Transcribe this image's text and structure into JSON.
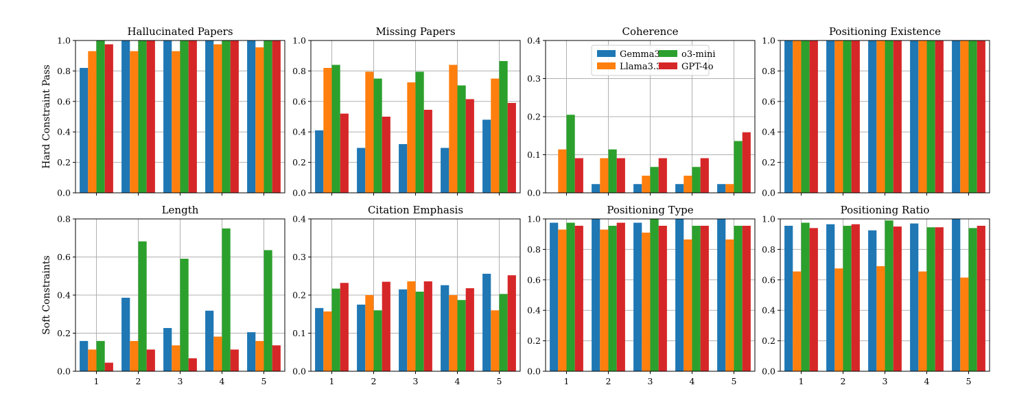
{
  "chart_data": [
    {
      "type": "bar",
      "title": "Hallucinated Papers",
      "ylabel": "Hard Constraint Pass",
      "categories": [
        "1",
        "2",
        "3",
        "4",
        "5"
      ],
      "ylim": [
        0,
        1.0
      ],
      "yticks": [
        "0.0",
        "0.2",
        "0.4",
        "0.6",
        "0.8",
        "1.0"
      ],
      "grid": true,
      "series": [
        {
          "name": "Gemma3",
          "values": [
            0.82,
            1.0,
            1.0,
            1.0,
            1.0
          ]
        },
        {
          "name": "Llama3.3",
          "values": [
            0.93,
            0.93,
            0.93,
            0.975,
            0.955
          ]
        },
        {
          "name": "o3-mini",
          "values": [
            1.0,
            1.0,
            1.0,
            1.0,
            1.0
          ]
        },
        {
          "name": "GPT-4o",
          "values": [
            0.975,
            1.0,
            1.0,
            1.0,
            1.0
          ]
        }
      ]
    },
    {
      "type": "bar",
      "title": "Missing Papers",
      "ylabel": "",
      "categories": [
        "1",
        "2",
        "3",
        "4",
        "5"
      ],
      "ylim": [
        0,
        1.0
      ],
      "yticks": [
        "0.0",
        "0.2",
        "0.4",
        "0.6",
        "0.8",
        "1.0"
      ],
      "grid": true,
      "series": [
        {
          "name": "Gemma3",
          "values": [
            0.41,
            0.295,
            0.32,
            0.295,
            0.48
          ]
        },
        {
          "name": "Llama3.3",
          "values": [
            0.82,
            0.795,
            0.725,
            0.84,
            0.75
          ]
        },
        {
          "name": "o3-mini",
          "values": [
            0.84,
            0.75,
            0.795,
            0.705,
            0.865
          ]
        },
        {
          "name": "GPT-4o",
          "values": [
            0.52,
            0.5,
            0.545,
            0.615,
            0.59
          ]
        }
      ]
    },
    {
      "type": "bar",
      "title": "Coherence",
      "ylabel": "",
      "categories": [
        "1",
        "2",
        "3",
        "4",
        "5"
      ],
      "ylim": [
        0,
        0.4
      ],
      "yticks": [
        "0.0",
        "0.1",
        "0.2",
        "0.3",
        "0.4"
      ],
      "grid": true,
      "legend": "top-center",
      "series": [
        {
          "name": "Gemma3",
          "values": [
            0.0,
            0.023,
            0.023,
            0.023,
            0.023
          ]
        },
        {
          "name": "Llama3.3",
          "values": [
            0.114,
            0.091,
            0.045,
            0.045,
            0.023
          ]
        },
        {
          "name": "o3-mini",
          "values": [
            0.205,
            0.114,
            0.068,
            0.068,
            0.136
          ]
        },
        {
          "name": "GPT-4o",
          "values": [
            0.091,
            0.091,
            0.091,
            0.091,
            0.159
          ]
        }
      ]
    },
    {
      "type": "bar",
      "title": "Positioning Existence",
      "ylabel": "",
      "categories": [
        "1",
        "2",
        "3",
        "4",
        "5"
      ],
      "ylim": [
        0,
        1.0
      ],
      "yticks": [
        "0.0",
        "0.2",
        "0.4",
        "0.6",
        "0.8",
        "1.0"
      ],
      "grid": true,
      "series": [
        {
          "name": "Gemma3",
          "values": [
            1.0,
            1.0,
            1.0,
            1.0,
            1.0
          ]
        },
        {
          "name": "Llama3.3",
          "values": [
            1.0,
            1.0,
            1.0,
            1.0,
            1.0
          ]
        },
        {
          "name": "o3-mini",
          "values": [
            1.0,
            1.0,
            1.0,
            1.0,
            1.0
          ]
        },
        {
          "name": "GPT-4o",
          "values": [
            1.0,
            1.0,
            1.0,
            1.0,
            1.0
          ]
        }
      ]
    },
    {
      "type": "bar",
      "title": "Length",
      "ylabel": "Soft Constraints",
      "categories": [
        "1",
        "2",
        "3",
        "4",
        "5"
      ],
      "ylim": [
        0,
        0.8
      ],
      "yticks": [
        "0.0",
        "0.2",
        "0.4",
        "0.6",
        "0.8"
      ],
      "grid": true,
      "series": [
        {
          "name": "Gemma3",
          "values": [
            0.159,
            0.386,
            0.227,
            0.318,
            0.205
          ]
        },
        {
          "name": "Llama3.3",
          "values": [
            0.114,
            0.159,
            0.136,
            0.182,
            0.159
          ]
        },
        {
          "name": "o3-mini",
          "values": [
            0.159,
            0.682,
            0.591,
            0.75,
            0.636
          ]
        },
        {
          "name": "GPT-4o",
          "values": [
            0.045,
            0.114,
            0.068,
            0.114,
            0.136
          ]
        }
      ]
    },
    {
      "type": "bar",
      "title": "Citation Emphasis",
      "ylabel": "",
      "categories": [
        "1",
        "2",
        "3",
        "4",
        "5"
      ],
      "ylim": [
        0,
        0.4
      ],
      "yticks": [
        "0.0",
        "0.1",
        "0.2",
        "0.3",
        "0.4"
      ],
      "grid": true,
      "series": [
        {
          "name": "Gemma3",
          "values": [
            0.166,
            0.175,
            0.215,
            0.226,
            0.256
          ]
        },
        {
          "name": "Llama3.3",
          "values": [
            0.157,
            0.2,
            0.236,
            0.2,
            0.16
          ]
        },
        {
          "name": "o3-mini",
          "values": [
            0.217,
            0.16,
            0.209,
            0.187,
            0.203
          ]
        },
        {
          "name": "GPT-4o",
          "values": [
            0.232,
            0.235,
            0.236,
            0.218,
            0.252
          ]
        }
      ]
    },
    {
      "type": "bar",
      "title": "Positioning Type",
      "ylabel": "",
      "categories": [
        "1",
        "2",
        "3",
        "4",
        "5"
      ],
      "ylim": [
        0,
        1.0
      ],
      "yticks": [
        "0.0",
        "0.2",
        "0.4",
        "0.6",
        "0.8",
        "1.0"
      ],
      "grid": true,
      "series": [
        {
          "name": "Gemma3",
          "values": [
            0.975,
            1.0,
            0.975,
            1.0,
            1.0
          ]
        },
        {
          "name": "Llama3.3",
          "values": [
            0.93,
            0.93,
            0.91,
            0.865,
            0.865
          ]
        },
        {
          "name": "o3-mini",
          "values": [
            0.975,
            0.955,
            1.0,
            0.955,
            0.955
          ]
        },
        {
          "name": "GPT-4o",
          "values": [
            0.955,
            0.975,
            0.955,
            0.955,
            0.955
          ]
        }
      ]
    },
    {
      "type": "bar",
      "title": "Positioning Ratio",
      "ylabel": "",
      "categories": [
        "1",
        "2",
        "3",
        "4",
        "5"
      ],
      "ylim": [
        0,
        1.0
      ],
      "yticks": [
        "0.0",
        "0.2",
        "0.4",
        "0.6",
        "0.8",
        "1.0"
      ],
      "grid": true,
      "series": [
        {
          "name": "Gemma3",
          "values": [
            0.955,
            0.965,
            0.925,
            0.97,
            1.0
          ]
        },
        {
          "name": "Llama3.3",
          "values": [
            0.655,
            0.675,
            0.69,
            0.655,
            0.615
          ]
        },
        {
          "name": "o3-mini",
          "values": [
            0.975,
            0.955,
            0.99,
            0.945,
            0.94
          ]
        },
        {
          "name": "GPT-4o",
          "values": [
            0.94,
            0.965,
            0.95,
            0.945,
            0.955
          ]
        }
      ]
    }
  ],
  "colors": {
    "Gemma3": "#1f77b4",
    "Llama3.3": "#ff7f0e",
    "o3-mini": "#2ca02c",
    "GPT-4o": "#d62728"
  },
  "legend": {
    "entries": [
      "Gemma3",
      "Llama3.3",
      "o3-mini",
      "GPT-4o"
    ]
  }
}
